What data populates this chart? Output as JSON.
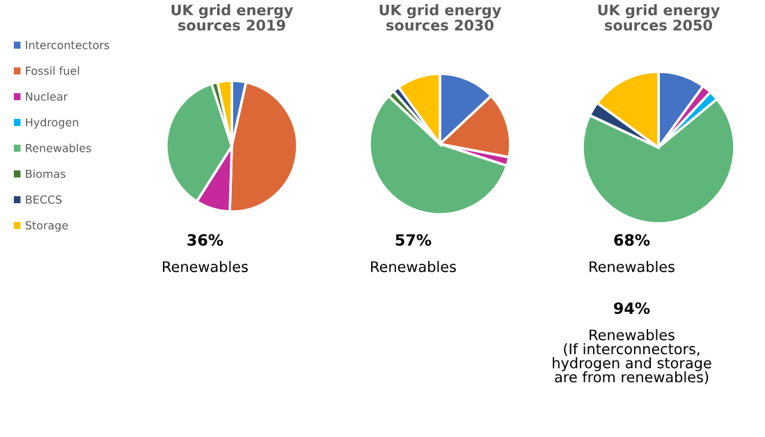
{
  "chart_data": [
    {
      "type": "pie",
      "title": "UK grid energy\nsources 2019",
      "legend": "left",
      "categories": [
        "Intercontectors",
        "Fossil fuel",
        "Nuclear",
        "Hydrogen",
        "Renewables",
        "Biomas",
        "BECCS",
        "Storage"
      ],
      "colors": [
        "#4472c4",
        "#dd6837",
        "#c5299b",
        "#00b0f0",
        "#5fb67a",
        "#44792f",
        "#264478",
        "#ffc000"
      ],
      "values": [
        3.5,
        47,
        8.5,
        0,
        36,
        1.5,
        0,
        3.5
      ],
      "annotations": [
        "36%",
        "Renewables"
      ]
    },
    {
      "type": "pie",
      "title": "UK grid energy\nsources 2030",
      "categories": [
        null,
        null,
        null,
        null,
        null,
        null,
        null,
        null
      ],
      "colors": [
        "#4472c4",
        "#dd6837",
        "#c5299b",
        "#00b0f0",
        "#5fb67a",
        "#44792f",
        "#264478",
        "#ffc000"
      ],
      "values": [
        13,
        15,
        2,
        0,
        57,
        1.5,
        1.5,
        10
      ],
      "annotations": [
        "57%",
        "Renewables"
      ]
    },
    {
      "type": "pie",
      "title": "UK grid energy\nsources 2050",
      "categories": [
        null,
        null,
        null,
        null,
        null,
        null,
        null,
        null
      ],
      "colors": [
        "#4472c4",
        "#dd6837",
        "#c5299b",
        "#00b0f0",
        "#5fb67a",
        "#44792f",
        "#264478",
        "#ffc000"
      ],
      "values": [
        10,
        0,
        2,
        2,
        68,
        0,
        3,
        15
      ],
      "annotations": [
        "68%",
        "Renewables",
        "94%",
        "Renewables\n(If interconnectors,\nhydrogen and storage\nare from renewables)"
      ]
    }
  ]
}
